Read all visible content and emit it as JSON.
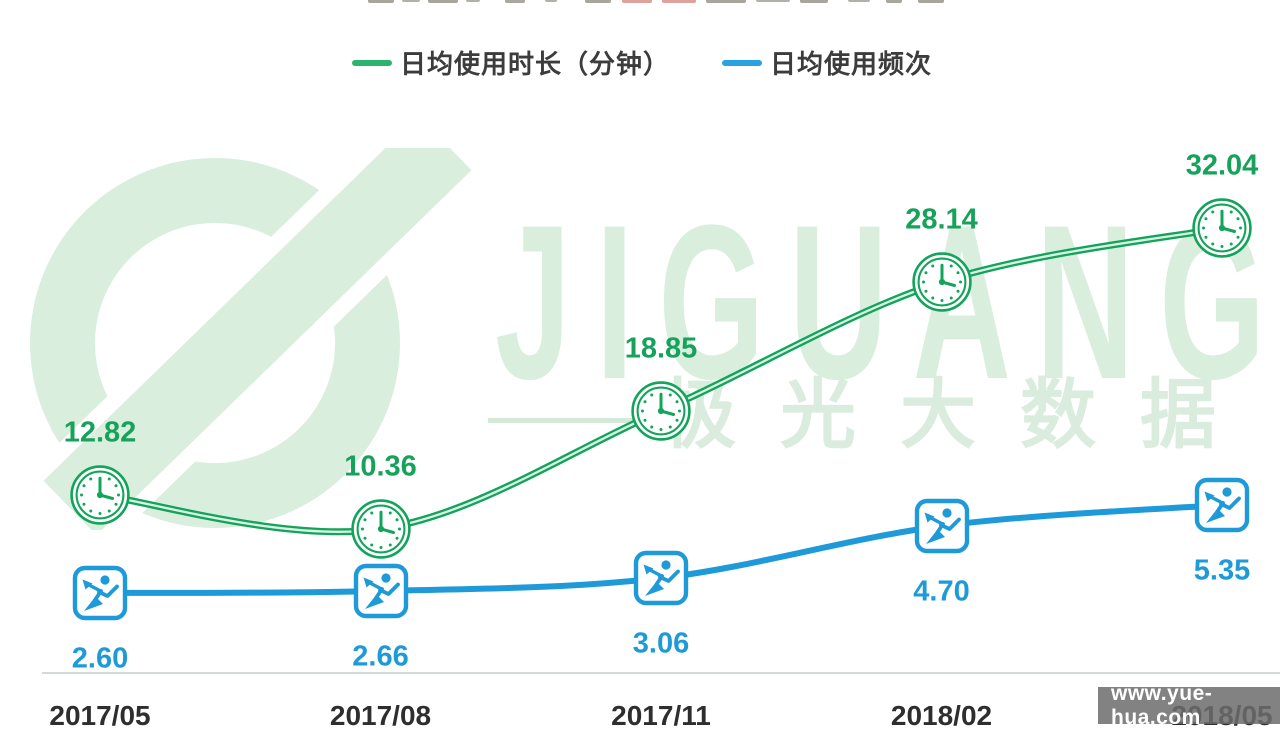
{
  "chart_data": {
    "type": "line",
    "title_visible": false,
    "categories": [
      "2017/05",
      "2017/08",
      "2017/11",
      "2018/02",
      "2018/05"
    ],
    "series": [
      {
        "name": "日均使用时长（分钟）",
        "color": "#12a45a",
        "marker": "clock",
        "values": [
          12.82,
          10.36,
          18.85,
          28.14,
          32.04
        ],
        "labels": [
          "12.82",
          "10.36",
          "18.85",
          "28.14",
          "32.04"
        ]
      },
      {
        "name": "日均使用频次",
        "color": "#1e9ad8",
        "marker": "runner",
        "values": [
          2.6,
          2.66,
          3.06,
          4.7,
          5.35
        ],
        "labels": [
          "2.60",
          "2.66",
          "3.06",
          "4.70",
          "5.35"
        ]
      }
    ],
    "data_labels": true,
    "grid": false,
    "legend_position": "top"
  },
  "watermark": {
    "brand_latin": "JIGUANG",
    "brand_cjk": "极光大数据"
  },
  "footer_badge": {
    "text": "www.yue-hua.com"
  },
  "colors": {
    "green": "#12a45a",
    "blue": "#1e9ad8",
    "watermark_green": "#daeede",
    "axis_line": "#d3d9dd"
  }
}
